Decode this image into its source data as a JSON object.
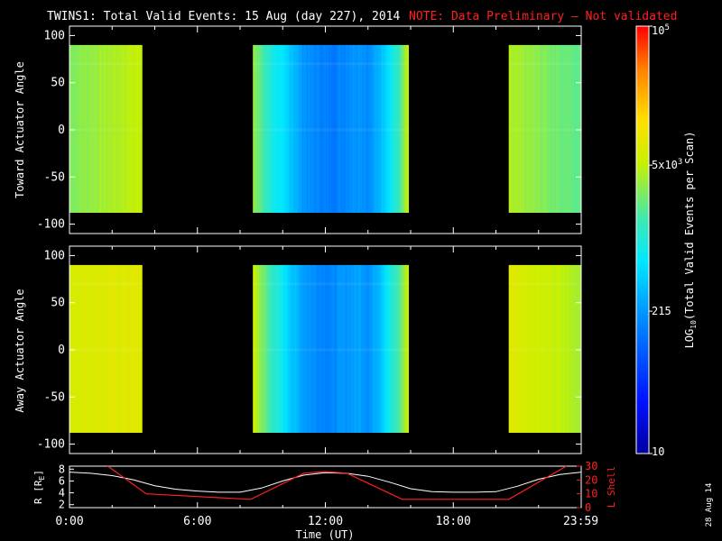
{
  "title": {
    "main": "TWINS1: Total Valid Events: 15 Aug (day 227), 2014",
    "note": "NOTE: Data Preliminary – Not validated"
  },
  "colors": {
    "background": "#000000",
    "axes": "#ffffff",
    "note": "#ff2020",
    "r_line": "#ffffff",
    "lshell_line": "#ff2020"
  },
  "colorbar": {
    "label_main": "LOG",
    "label_sub": "10",
    "label_rest": "(Total Valid Events per Scan)",
    "scale": "log",
    "range": [
      10,
      100000
    ],
    "ticks": [
      {
        "value": 10,
        "base": "10",
        "exp": ""
      },
      {
        "value": 215,
        "base": "215",
        "exp": ""
      },
      {
        "value": 5000,
        "base": "5x10",
        "exp": "3"
      },
      {
        "value": 100000,
        "base": "10",
        "exp": "5"
      }
    ]
  },
  "date_stamp": "28 Aug 14",
  "chart_data": [
    {
      "type": "heatmap",
      "panel": "toward",
      "ylabel": "Toward Actuator Angle",
      "ylim": [
        -110,
        110
      ],
      "yticks": [
        "100",
        "50",
        "0",
        "-50",
        "-100"
      ],
      "angle_range": [
        -88,
        90
      ],
      "segments": [
        {
          "t_start": 0.0,
          "t_end": 3.4,
          "level_start": 3.45,
          "level_end": 3.72
        },
        {
          "t_start": 8.6,
          "t_end": 15.9,
          "level_profile": [
            3.55,
            3.2,
            2.95,
            2.75,
            2.6,
            2.35,
            2.25,
            2.2,
            2.15,
            2.2,
            2.3,
            2.35,
            2.25,
            2.5,
            2.8,
            3.1,
            3.7
          ]
        },
        {
          "t_start": 20.6,
          "t_end": 23.98,
          "level_start": 3.6,
          "level_end": 3.3
        }
      ]
    },
    {
      "type": "heatmap",
      "panel": "away",
      "ylabel": "Away Actuator Angle",
      "ylim": [
        -110,
        110
      ],
      "yticks": [
        "100",
        "50",
        "0",
        "-50",
        "-100"
      ],
      "angle_range": [
        -88,
        90
      ],
      "segments": [
        {
          "t_start": 0.0,
          "t_end": 3.4,
          "level_start": 3.85,
          "level_end": 3.9
        },
        {
          "t_start": 8.6,
          "t_end": 15.9,
          "level_profile": [
            3.75,
            3.4,
            3.1,
            2.85,
            2.6,
            2.4,
            2.3,
            2.25,
            2.2,
            2.3,
            2.35,
            2.4,
            2.3,
            2.55,
            2.9,
            3.2,
            3.75
          ]
        },
        {
          "t_start": 20.6,
          "t_end": 23.98,
          "level_start": 3.9,
          "level_end": 3.6
        }
      ]
    },
    {
      "type": "line",
      "panel": "orbit",
      "ylabel": "R [R",
      "ylabel_sub": "E",
      "ylabel_end": "]",
      "ylabel_right": "L Shell",
      "xlabel": "Time (UT)",
      "xlim": [
        0,
        24
      ],
      "xticks": [
        {
          "value": 0,
          "label": "0:00"
        },
        {
          "value": 6,
          "label": "6:00"
        },
        {
          "value": 12,
          "label": "12:00"
        },
        {
          "value": 18,
          "label": "18:00"
        },
        {
          "value": 23.98,
          "label": "23:59"
        }
      ],
      "ylim": [
        1.5,
        8.5
      ],
      "yticks": [
        "8",
        "6",
        "4",
        "2"
      ],
      "y2lim": [
        0,
        30
      ],
      "y2ticks": [
        "30",
        "20",
        "10",
        "0"
      ],
      "series": [
        {
          "role": "r",
          "x": [
            0,
            1,
            2,
            3,
            4,
            5,
            6,
            7,
            8,
            9,
            10,
            11,
            12,
            13,
            14,
            15,
            16,
            17,
            18,
            19,
            20,
            21,
            22,
            23,
            24
          ],
          "y": [
            7.5,
            7.3,
            6.9,
            6.2,
            5.2,
            4.6,
            4.3,
            4.1,
            4.1,
            4.8,
            6.0,
            7.0,
            7.4,
            7.3,
            6.8,
            5.8,
            4.7,
            4.2,
            4.1,
            4.1,
            4.2,
            5.1,
            6.3,
            7.1,
            7.5
          ]
        },
        {
          "role": "lshell",
          "x": [
            1.8,
            3.6,
            8.5,
            11.0,
            12.0,
            13.0,
            15.6,
            20.6,
            23.3
          ],
          "y": [
            30,
            10,
            6,
            25,
            26,
            25,
            6,
            6,
            30
          ]
        }
      ]
    }
  ]
}
